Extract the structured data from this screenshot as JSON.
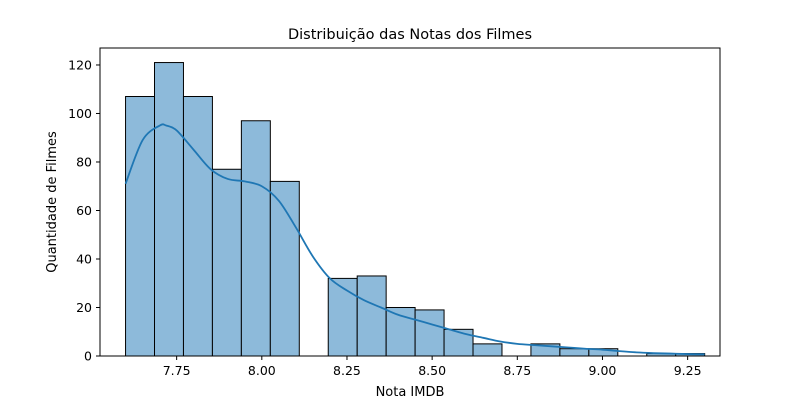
{
  "chart_data": {
    "type": "bar",
    "subtype": "histogram-with-kde",
    "title": "Distribuição das Notas dos Filmes",
    "xlabel": "Nota IMDB",
    "ylabel": "Quantidade de Filmes",
    "xlim": [
      7.525,
      9.345
    ],
    "ylim": [
      0,
      127
    ],
    "xticks": [
      7.75,
      8.0,
      8.25,
      8.5,
      8.75,
      9.0,
      9.25
    ],
    "xtick_labels": [
      "7.75",
      "8.00",
      "8.25",
      "8.50",
      "8.75",
      "9.00",
      "9.25"
    ],
    "yticks": [
      0,
      20,
      40,
      60,
      80,
      100,
      120
    ],
    "ytick_labels": [
      "0",
      "20",
      "40",
      "60",
      "80",
      "100",
      "120"
    ],
    "bins": [
      {
        "x0": 7.6,
        "x1": 7.685,
        "count": 107
      },
      {
        "x0": 7.685,
        "x1": 7.77,
        "count": 121
      },
      {
        "x0": 7.77,
        "x1": 7.855,
        "count": 107
      },
      {
        "x0": 7.855,
        "x1": 7.94,
        "count": 77
      },
      {
        "x0": 7.94,
        "x1": 8.025,
        "count": 97
      },
      {
        "x0": 8.025,
        "x1": 8.11,
        "count": 72
      },
      {
        "x0": 8.11,
        "x1": 8.195,
        "count": 0
      },
      {
        "x0": 8.195,
        "x1": 8.28,
        "count": 32
      },
      {
        "x0": 8.28,
        "x1": 8.365,
        "count": 33
      },
      {
        "x0": 8.365,
        "x1": 8.45,
        "count": 20
      },
      {
        "x0": 8.45,
        "x1": 8.535,
        "count": 19
      },
      {
        "x0": 8.535,
        "x1": 8.62,
        "count": 11
      },
      {
        "x0": 8.62,
        "x1": 8.705,
        "count": 5
      },
      {
        "x0": 8.705,
        "x1": 8.79,
        "count": 0
      },
      {
        "x0": 8.79,
        "x1": 8.875,
        "count": 5
      },
      {
        "x0": 8.875,
        "x1": 8.96,
        "count": 3
      },
      {
        "x0": 8.96,
        "x1": 9.045,
        "count": 3
      },
      {
        "x0": 9.045,
        "x1": 9.13,
        "count": 0
      },
      {
        "x0": 9.13,
        "x1": 9.215,
        "count": 1
      },
      {
        "x0": 9.215,
        "x1": 9.3,
        "count": 1
      }
    ],
    "kde": {
      "x": [
        7.6,
        7.65,
        7.7,
        7.72,
        7.75,
        7.8,
        7.85,
        7.9,
        7.95,
        8.0,
        8.05,
        8.1,
        8.15,
        8.2,
        8.25,
        8.3,
        8.35,
        8.4,
        8.45,
        8.5,
        8.55,
        8.6,
        8.65,
        8.7,
        8.75,
        8.8,
        8.85,
        8.9,
        8.95,
        9.0,
        9.05,
        9.1,
        9.15,
        9.2,
        9.25,
        9.3
      ],
      "y": [
        71,
        89,
        95,
        95,
        93,
        85,
        77,
        73,
        72,
        70,
        64,
        53,
        41,
        32,
        27,
        23,
        20,
        17,
        15,
        13,
        11,
        9,
        7.5,
        6,
        5,
        4.5,
        4,
        3.5,
        3,
        2.6,
        2,
        1.5,
        1.2,
        1,
        0.8,
        0.7
      ]
    },
    "colors": {
      "bar_fill": "#8dbada",
      "bar_edge": "#000000",
      "kde_line": "#1f77b4"
    },
    "grid": false,
    "legend": "none"
  }
}
